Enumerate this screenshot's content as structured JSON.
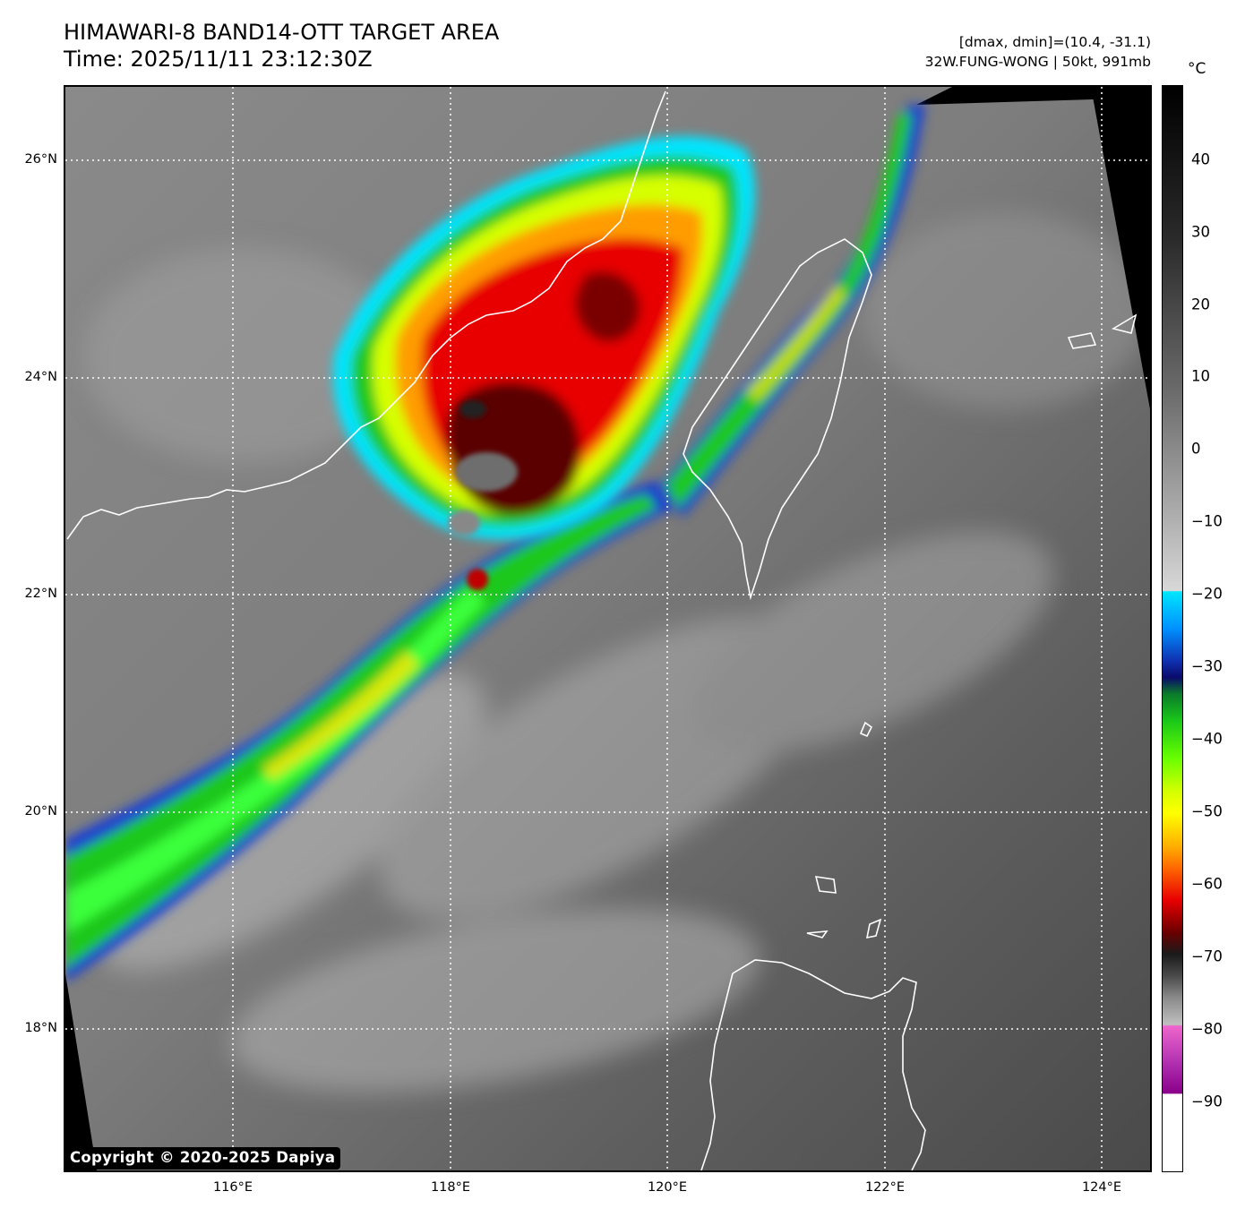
{
  "header": {
    "title": "HIMAWARI-8 BAND14-OTT TARGET AREA",
    "time": "Time: 2025/11/11 23:12:30Z",
    "dmax_dmin": "[dmax, dmin]=(10.4, -31.1)",
    "storm": "32W.FUNG-WONG | 50kt, 991mb"
  },
  "map": {
    "lat_labels": [
      "26°N",
      "24°N",
      "22°N",
      "20°N",
      "18°N"
    ],
    "lon_labels": [
      "116°E",
      "118°E",
      "120°E",
      "122°E",
      "124°E"
    ],
    "copyright": "Copyright © 2020-2025 Dapiya"
  },
  "colorbar": {
    "unit": "°C",
    "ticks": [
      "40",
      "30",
      "20",
      "10",
      "0",
      "−10",
      "−20",
      "−30",
      "−40",
      "−50",
      "−60",
      "−70",
      "−80",
      "−90"
    ]
  }
}
